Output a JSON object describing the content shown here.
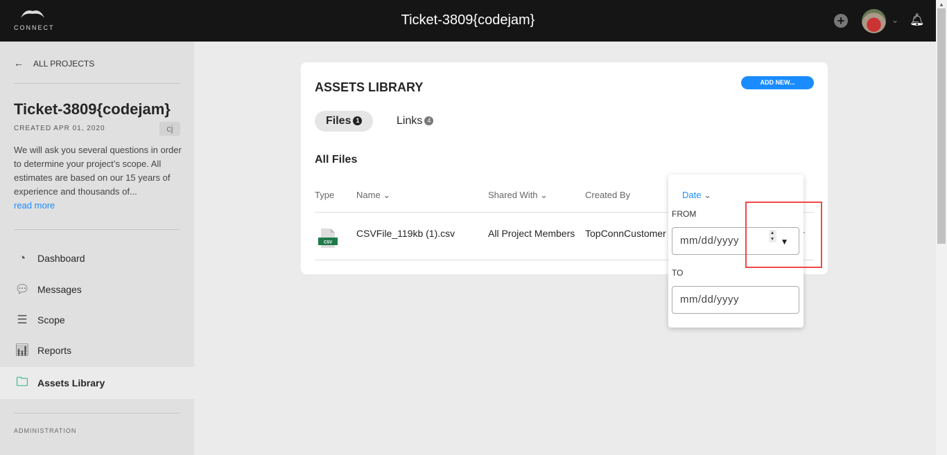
{
  "header": {
    "logo_text": "CONNECT",
    "title": "Ticket-3809{codejam}",
    "icons": [
      "plus-circle-icon",
      "avatar",
      "chevron-down-icon",
      "bell-icon"
    ]
  },
  "sidebar": {
    "back_label": "ALL PROJECTS",
    "project_title": "Ticket-3809{codejam}",
    "created": "CREATED APR 01, 2020",
    "initials": "cj",
    "description": "We will ask you several questions in order to determine your project’s scope. All estimates are based on our 15 years of experience and thousands of...",
    "read_more": "read more",
    "items": [
      {
        "label": "Dashboard",
        "icon": "gauge-icon"
      },
      {
        "label": "Messages",
        "icon": "chat-icon"
      },
      {
        "label": "Scope",
        "icon": "list-icon"
      },
      {
        "label": "Reports",
        "icon": "chart-icon"
      },
      {
        "label": "Assets Library",
        "icon": "folder-icon",
        "active": true
      }
    ],
    "admin_label": "ADMINISTRATION"
  },
  "main": {
    "title": "ASSETS LIBRARY",
    "add_new": "ADD NEW...",
    "tabs": [
      {
        "label": "Files",
        "count": "1"
      },
      {
        "label": "Links",
        "count": "4"
      }
    ],
    "section": "All Files",
    "columns": [
      "Type",
      "Name",
      "Shared With",
      "Created By",
      "Date"
    ],
    "rows": [
      {
        "type": "CSV",
        "name": "CSVFile_119kb (1).csv",
        "shared": "All Project Members",
        "created_by": "TopConnCustomer"
      }
    ]
  },
  "date_filter": {
    "header": "Date",
    "from_label": "FROM",
    "to_label": "TO",
    "from_placeholder": "mm/dd/yyyy",
    "to_placeholder": "mm/dd/yyyy"
  },
  "colors": {
    "accent": "#1a8cff",
    "highlight": "#f04848"
  }
}
